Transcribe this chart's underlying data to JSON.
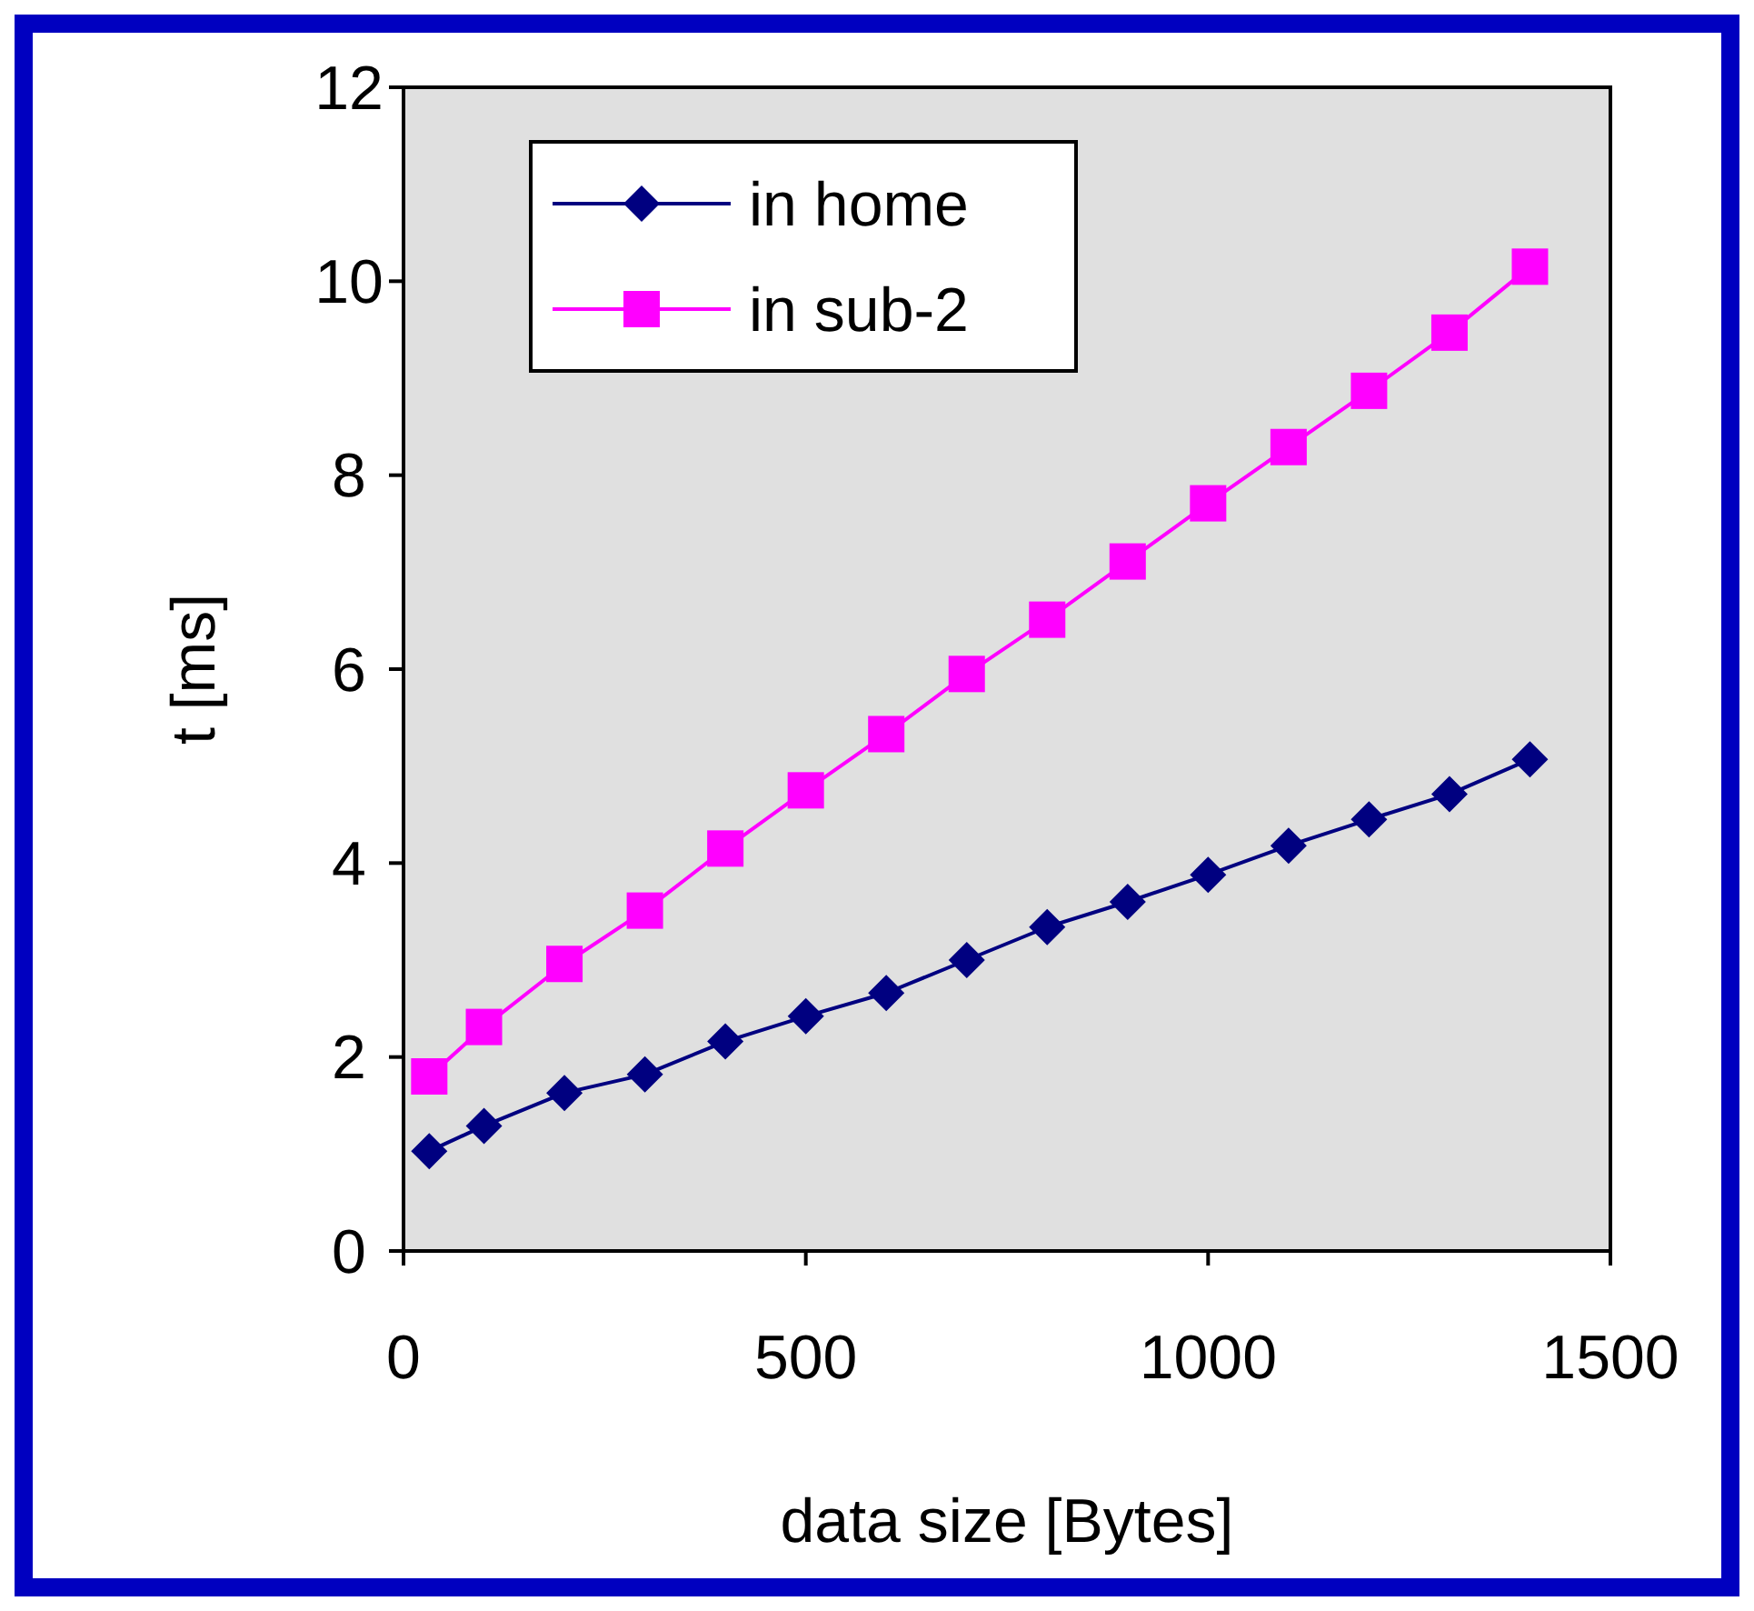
{
  "chart_data": {
    "type": "line",
    "xlabel": "data size [Bytes]",
    "ylabel": "t [ms]",
    "x": [
      32,
      100,
      200,
      300,
      400,
      500,
      600,
      700,
      800,
      900,
      1000,
      1100,
      1200,
      1300,
      1400
    ],
    "series": [
      {
        "name": "in home",
        "color": "#000080",
        "marker": "diamond",
        "values": [
          1.03,
          1.29,
          1.63,
          1.82,
          2.16,
          2.42,
          2.66,
          3.0,
          3.34,
          3.6,
          3.88,
          4.18,
          4.45,
          4.71,
          5.07
        ]
      },
      {
        "name": "in sub-2",
        "color": "#ff00ff",
        "marker": "square",
        "values": [
          1.8,
          2.31,
          2.96,
          3.51,
          4.15,
          4.75,
          5.33,
          5.95,
          6.51,
          7.11,
          7.71,
          8.29,
          8.87,
          9.47,
          10.15
        ]
      }
    ],
    "xlim": [
      0,
      1500
    ],
    "xticks": [
      0,
      500,
      1000,
      1500
    ],
    "ylim": [
      0,
      12
    ],
    "yticks": [
      0,
      2,
      4,
      6,
      8,
      10,
      12
    ],
    "grid": false,
    "legend": "top left"
  }
}
